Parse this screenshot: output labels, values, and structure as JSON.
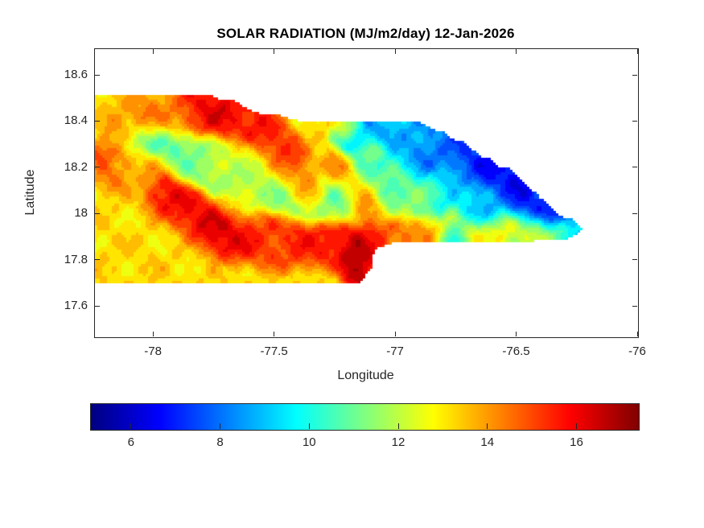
{
  "figure": {
    "background": "#ffffff",
    "axis_color": "#262626",
    "title_color": "#000000"
  },
  "chart_data": {
    "type": "heatmap",
    "subtype": "filled-contour-map",
    "title": "SOLAR RADIATION (MJ/m2/day) 12-Jan-2026",
    "xlabel": "Longitude",
    "ylabel": "Latitude",
    "region": "Jamaica",
    "xlim": [
      -78.243,
      -76.0
    ],
    "ylim": [
      17.468,
      18.715
    ],
    "xticks": [
      -78,
      -77.5,
      -77,
      -76.5,
      -76
    ],
    "xtick_labels": [
      "-78",
      "-77.5",
      "-77",
      "-76.5",
      "-76"
    ],
    "yticks": [
      17.6,
      17.8,
      18,
      18.2,
      18.4,
      18.6
    ],
    "ytick_labels": [
      "17.6",
      "17.8",
      "18",
      "18.2",
      "18.4",
      "18.6"
    ],
    "grid": false,
    "colormap": "jet",
    "level_step": 0.5,
    "colorbar": {
      "orientation": "horizontal",
      "vmin": 5.1,
      "vmax": 17.4,
      "ticks": [
        6,
        8,
        10,
        12,
        14,
        16
      ],
      "tick_labels": [
        "6",
        "8",
        "10",
        "12",
        "14",
        "16"
      ]
    },
    "field_base": {
      "value": 13.2,
      "weight": 0.15
    },
    "outline_lonlat": [
      [
        -78.226,
        18.29
      ],
      [
        -78.199,
        18.325
      ],
      [
        -78.159,
        18.342
      ],
      [
        -78.126,
        18.36
      ],
      [
        -78.1,
        18.387
      ],
      [
        -78.066,
        18.401
      ],
      [
        -78.027,
        18.415
      ],
      [
        -77.987,
        18.405
      ],
      [
        -77.947,
        18.422
      ],
      [
        -77.914,
        18.433
      ],
      [
        -77.88,
        18.415
      ],
      [
        -77.854,
        18.44
      ],
      [
        -77.827,
        18.471
      ],
      [
        -77.801,
        18.502
      ],
      [
        -77.767,
        18.516
      ],
      [
        -77.734,
        18.499
      ],
      [
        -77.701,
        18.482
      ],
      [
        -77.668,
        18.492
      ],
      [
        -77.635,
        18.471
      ],
      [
        -77.595,
        18.45
      ],
      [
        -77.555,
        18.433
      ],
      [
        -77.515,
        18.415
      ],
      [
        -77.475,
        18.429
      ],
      [
        -77.435,
        18.415
      ],
      [
        -77.389,
        18.401
      ],
      [
        -77.342,
        18.391
      ],
      [
        -77.302,
        18.405
      ],
      [
        -77.263,
        18.387
      ],
      [
        -77.223,
        18.401
      ],
      [
        -77.183,
        18.38
      ],
      [
        -77.143,
        18.394
      ],
      [
        -77.103,
        18.38
      ],
      [
        -77.063,
        18.37
      ],
      [
        -77.023,
        18.36
      ],
      [
        -76.984,
        18.377
      ],
      [
        -76.95,
        18.391
      ],
      [
        -76.917,
        18.405
      ],
      [
        -76.881,
        18.391
      ],
      [
        -76.851,
        18.373
      ],
      [
        -76.821,
        18.346
      ],
      [
        -76.794,
        18.356
      ],
      [
        -76.768,
        18.328
      ],
      [
        -76.738,
        18.304
      ],
      [
        -76.715,
        18.314
      ],
      [
        -76.688,
        18.286
      ],
      [
        -76.661,
        18.259
      ],
      [
        -76.635,
        18.238
      ],
      [
        -76.611,
        18.248
      ],
      [
        -76.585,
        18.22
      ],
      [
        -76.558,
        18.192
      ],
      [
        -76.532,
        18.203
      ],
      [
        -76.505,
        18.171
      ],
      [
        -76.479,
        18.144
      ],
      [
        -76.452,
        18.119
      ],
      [
        -76.425,
        18.095
      ],
      [
        -76.399,
        18.067
      ],
      [
        -76.372,
        18.043
      ],
      [
        -76.346,
        18.018
      ],
      [
        -76.322,
        17.997
      ],
      [
        -76.299,
        17.976
      ],
      [
        -76.276,
        17.983
      ],
      [
        -76.253,
        17.959
      ],
      [
        -76.233,
        17.938
      ],
      [
        -76.256,
        17.91
      ],
      [
        -76.286,
        17.896
      ],
      [
        -76.319,
        17.886
      ],
      [
        -76.349,
        17.896
      ],
      [
        -76.379,
        17.903
      ],
      [
        -76.409,
        17.889
      ],
      [
        -76.442,
        17.882
      ],
      [
        -76.475,
        17.9
      ],
      [
        -76.508,
        17.903
      ],
      [
        -76.541,
        17.889
      ],
      [
        -76.575,
        17.875
      ],
      [
        -76.605,
        17.882
      ],
      [
        -76.635,
        17.896
      ],
      [
        -76.664,
        17.914
      ],
      [
        -76.694,
        17.928
      ],
      [
        -76.724,
        17.948
      ],
      [
        -76.751,
        17.976
      ],
      [
        -76.777,
        18.001
      ],
      [
        -76.804,
        17.98
      ],
      [
        -76.834,
        17.959
      ],
      [
        -76.864,
        17.945
      ],
      [
        -76.897,
        17.928
      ],
      [
        -76.933,
        17.91
      ],
      [
        -76.97,
        17.893
      ],
      [
        -77.006,
        17.879
      ],
      [
        -77.043,
        17.865
      ],
      [
        -77.076,
        17.854
      ],
      [
        -77.093,
        17.83
      ],
      [
        -77.099,
        17.802
      ],
      [
        -77.093,
        17.774
      ],
      [
        -77.113,
        17.75
      ],
      [
        -77.133,
        17.722
      ],
      [
        -77.156,
        17.701
      ],
      [
        -77.176,
        17.708
      ],
      [
        -77.193,
        17.736
      ],
      [
        -77.206,
        17.767
      ],
      [
        -77.216,
        17.802
      ],
      [
        -77.229,
        17.833
      ],
      [
        -77.249,
        17.851
      ],
      [
        -77.282,
        17.865
      ],
      [
        -77.319,
        17.868
      ],
      [
        -77.355,
        17.858
      ],
      [
        -77.395,
        17.865
      ],
      [
        -77.435,
        17.858
      ],
      [
        -77.475,
        17.865
      ],
      [
        -77.515,
        17.858
      ],
      [
        -77.555,
        17.854
      ],
      [
        -77.595,
        17.851
      ],
      [
        -77.631,
        17.865
      ],
      [
        -77.654,
        17.889
      ],
      [
        -77.681,
        17.917
      ],
      [
        -77.708,
        17.945
      ],
      [
        -77.734,
        17.976
      ],
      [
        -77.761,
        18.008
      ],
      [
        -77.787,
        18.039
      ],
      [
        -77.814,
        18.07
      ],
      [
        -77.84,
        18.098
      ],
      [
        -77.867,
        18.126
      ],
      [
        -77.897,
        18.154
      ],
      [
        -77.93,
        18.175
      ],
      [
        -77.967,
        18.189
      ],
      [
        -78.007,
        18.199
      ],
      [
        -78.047,
        18.206
      ],
      [
        -78.086,
        18.206
      ],
      [
        -78.123,
        18.199
      ],
      [
        -78.156,
        18.21
      ],
      [
        -78.189,
        18.22
      ],
      [
        -78.216,
        18.245
      ],
      [
        -78.233,
        18.273
      ]
    ],
    "field_sources": [
      [
        -76.572,
        18.175,
        0.186,
        6.8
      ],
      [
        -76.688,
        18.255,
        0.108,
        7.0
      ],
      [
        -76.445,
        18.088,
        0.129,
        6.4
      ],
      [
        -76.306,
        18.001,
        0.068,
        5.5
      ],
      [
        -76.495,
        18.144,
        0.054,
        5.4
      ],
      [
        -76.605,
        18.231,
        0.054,
        5.5
      ],
      [
        -76.838,
        18.29,
        0.095,
        8.2
      ],
      [
        -76.964,
        18.325,
        0.088,
        8.6
      ],
      [
        -77.076,
        18.373,
        0.068,
        8.2
      ],
      [
        -77.153,
        18.342,
        0.044,
        6.9
      ],
      [
        -76.897,
        18.227,
        0.054,
        7.2
      ],
      [
        -76.771,
        18.105,
        0.061,
        9.5
      ],
      [
        -77.036,
        18.185,
        0.075,
        10.5
      ],
      [
        -77.13,
        18.137,
        0.051,
        11.0
      ],
      [
        -77.402,
        18.088,
        0.051,
        10.4
      ],
      [
        -77.296,
        18.063,
        0.051,
        10.1
      ],
      [
        -77.196,
        18.046,
        0.037,
        10.8
      ],
      [
        -78.083,
        18.325,
        0.037,
        10.2
      ],
      [
        -77.993,
        18.311,
        0.044,
        10.0
      ],
      [
        -77.9,
        18.293,
        0.044,
        10.4
      ],
      [
        -77.807,
        18.273,
        0.041,
        11.0
      ],
      [
        -77.851,
        18.203,
        0.034,
        11.2
      ],
      [
        -77.761,
        18.185,
        0.037,
        11.2
      ],
      [
        -77.674,
        18.168,
        0.037,
        11.3
      ],
      [
        -77.575,
        18.13,
        0.044,
        11.5
      ],
      [
        -77.485,
        18.112,
        0.041,
        11.0
      ],
      [
        -77.003,
        18.095,
        0.047,
        10.8
      ],
      [
        -76.92,
        18.07,
        0.044,
        11.8
      ],
      [
        -76.259,
        17.952,
        0.027,
        11.5
      ],
      [
        -76.797,
        18.063,
        0.034,
        10.0
      ],
      [
        -77.635,
        18.245,
        0.061,
        12.5
      ],
      [
        -77.535,
        18.206,
        0.051,
        12.2
      ],
      [
        -77.734,
        18.238,
        0.041,
        12.0
      ],
      [
        -76.97,
        18.14,
        0.054,
        12.3
      ],
      [
        -76.838,
        18.123,
        0.047,
        12.5
      ],
      [
        -76.715,
        18.077,
        0.041,
        12.0
      ],
      [
        -76.598,
        18.046,
        0.047,
        11.0
      ],
      [
        -77.462,
        18.161,
        0.041,
        12.5
      ],
      [
        -77.761,
        18.464,
        0.068,
        16.5
      ],
      [
        -77.684,
        18.433,
        0.058,
        16.0
      ],
      [
        -77.834,
        18.44,
        0.044,
        15.5
      ],
      [
        -77.625,
        18.401,
        0.047,
        15.8
      ],
      [
        -77.575,
        18.37,
        0.041,
        16.2
      ],
      [
        -77.532,
        18.325,
        0.041,
        16.0
      ],
      [
        -77.489,
        18.273,
        0.041,
        16.3
      ],
      [
        -77.455,
        18.22,
        0.041,
        15.8
      ],
      [
        -77.422,
        18.171,
        0.041,
        15.7
      ],
      [
        -77.385,
        18.123,
        0.041,
        15.5
      ],
      [
        -77.346,
        18.084,
        0.044,
        15.5
      ],
      [
        -77.143,
        18.088,
        0.037,
        15.0
      ],
      [
        -77.13,
        18.032,
        0.041,
        15.5
      ],
      [
        -77.203,
        18.164,
        0.034,
        14.5
      ],
      [
        -78.033,
        18.408,
        0.054,
        14.5
      ],
      [
        -77.927,
        18.412,
        0.051,
        14.2
      ],
      [
        -78.116,
        18.367,
        0.041,
        14.6
      ],
      [
        -78.133,
        18.241,
        0.044,
        14.4
      ],
      [
        -78.02,
        18.217,
        0.041,
        13.9
      ],
      [
        -78.219,
        18.269,
        0.027,
        15.3
      ],
      [
        -78.176,
        18.164,
        0.034,
        14.5
      ],
      [
        -77.95,
        18.088,
        0.041,
        16.3
      ],
      [
        -77.867,
        18.025,
        0.041,
        16.4
      ],
      [
        -77.784,
        17.962,
        0.041,
        16.6
      ],
      [
        -77.708,
        17.9,
        0.041,
        16.8
      ],
      [
        -77.618,
        17.886,
        0.047,
        16.0
      ],
      [
        -77.502,
        17.879,
        0.051,
        15.5
      ],
      [
        -77.385,
        17.879,
        0.051,
        15.8
      ],
      [
        -77.269,
        17.879,
        0.047,
        16.2
      ],
      [
        -77.169,
        17.858,
        0.041,
        16.8
      ],
      [
        -77.159,
        17.802,
        0.037,
        17.2
      ],
      [
        -77.146,
        17.739,
        0.034,
        17.3
      ],
      [
        -77.07,
        17.879,
        0.044,
        15.8
      ],
      [
        -76.97,
        17.907,
        0.044,
        14.8
      ],
      [
        -76.871,
        17.935,
        0.041,
        15.0
      ],
      [
        -76.771,
        17.99,
        0.031,
        13.5
      ],
      [
        -76.664,
        17.921,
        0.041,
        15.0
      ],
      [
        -76.572,
        17.907,
        0.044,
        15.5
      ],
      [
        -76.479,
        17.921,
        0.044,
        15.8
      ],
      [
        -76.399,
        17.921,
        0.041,
        15.0
      ],
      [
        -76.322,
        17.924,
        0.034,
        13.8
      ],
      [
        -76.548,
        17.962,
        0.034,
        14.8
      ],
      [
        -77.183,
        18.367,
        0.034,
        14.8
      ],
      [
        -77.096,
        18.276,
        0.031,
        13.8
      ],
      [
        -77.243,
        18.213,
        0.034,
        14.0
      ]
    ]
  }
}
